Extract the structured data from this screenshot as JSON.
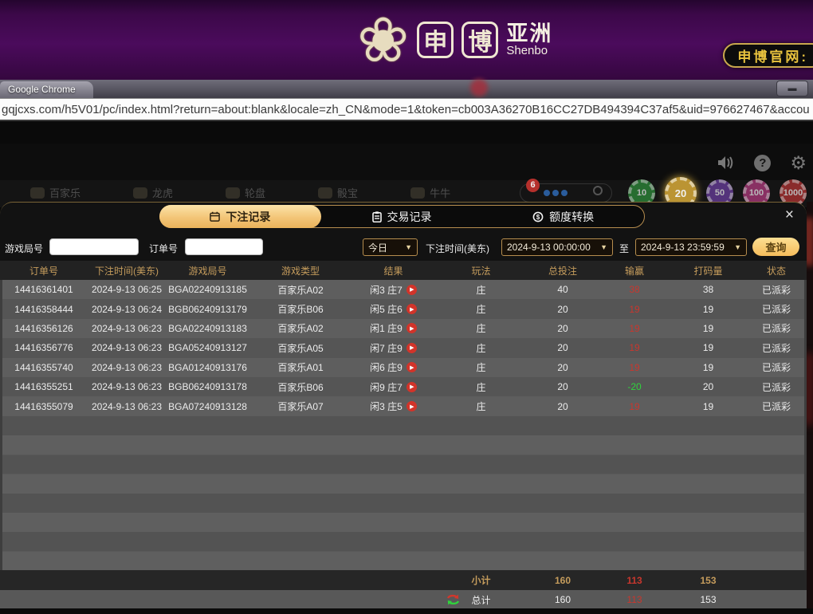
{
  "brand": {
    "logo_char_1": "申",
    "logo_char_2": "博",
    "logo_region": "亚洲",
    "logo_en": "Shenbo",
    "flower_glyph": "❀",
    "official_site_label": "申博官网:"
  },
  "browser": {
    "window_title": "Google Chrome",
    "url": "gqjcxs.com/h5V01/pc/index.html?return=about:blank&locale=zh_CN&mode=1&token=cb003A36270B16CC27DB494394C37af5&uid=976627467&accou",
    "minimize_glyph": "▬"
  },
  "game_header": {
    "help_glyph": "?",
    "gear_glyph": "⚙",
    "nav_items": [
      "百家乐",
      "龙虎",
      "轮盘",
      "骰宝",
      "牛牛"
    ],
    "notice_badge": "6",
    "chips": [
      "10",
      "20",
      "50",
      "100",
      "1000"
    ],
    "highlight_chip": "20",
    "chip_colors": [
      "#2e8b3a",
      "#bb9433",
      "#6a3e9e",
      "#b03a7e",
      "#b23333"
    ]
  },
  "modal": {
    "tabs": [
      {
        "name": "tab-bet-records",
        "label": "下注记录",
        "icon": "calendar-icon",
        "active": true
      },
      {
        "name": "tab-transaction-records",
        "label": "交易记录",
        "icon": "clipboard-icon",
        "active": false
      },
      {
        "name": "tab-quota-transfer",
        "label": "额度转换",
        "icon": "coins-icon",
        "active": false
      }
    ],
    "close_glyph": "×",
    "filters": {
      "game_round_label": "游戏局号",
      "game_round_value": "",
      "order_no_label": "订单号",
      "order_no_value": "",
      "range_select_value": "今日",
      "bet_time_label": "下注时间(美东)",
      "date_from_value": "2024-9-13 00:00:00",
      "to_label": "至",
      "date_to_value": "2024-9-13 23:59:59",
      "search_label": "查询",
      "caret_glyph": "▼"
    },
    "table": {
      "headers": [
        "订单号",
        "下注时间(美东)",
        "游戏局号",
        "游戏类型",
        "结果",
        "玩法",
        "总投注",
        "输赢",
        "打码量",
        "状态"
      ],
      "play_glyph": "▶",
      "rows": [
        {
          "order_no": "14416361401",
          "bet_time": "2024-9-13 06:25",
          "round_no": "BGA02240913185",
          "game_type": "百家乐A02",
          "result": "闲3 庄7",
          "play": "庄",
          "total_bet": "40",
          "win_loss": "38",
          "win_class": "red",
          "turnover": "38",
          "status": "已派彩"
        },
        {
          "order_no": "14416358444",
          "bet_time": "2024-9-13 06:24",
          "round_no": "BGB06240913179",
          "game_type": "百家乐B06",
          "result": "闲5 庄6",
          "play": "庄",
          "total_bet": "20",
          "win_loss": "19",
          "win_class": "red",
          "turnover": "19",
          "status": "已派彩"
        },
        {
          "order_no": "14416356126",
          "bet_time": "2024-9-13 06:23",
          "round_no": "BGA02240913183",
          "game_type": "百家乐A02",
          "result": "闲1 庄9",
          "play": "庄",
          "total_bet": "20",
          "win_loss": "19",
          "win_class": "red",
          "turnover": "19",
          "status": "已派彩"
        },
        {
          "order_no": "14416356776",
          "bet_time": "2024-9-13 06:23",
          "round_no": "BGA05240913127",
          "game_type": "百家乐A05",
          "result": "闲7 庄9",
          "play": "庄",
          "total_bet": "20",
          "win_loss": "19",
          "win_class": "red",
          "turnover": "19",
          "status": "已派彩"
        },
        {
          "order_no": "14416355740",
          "bet_time": "2024-9-13 06:23",
          "round_no": "BGA01240913176",
          "game_type": "百家乐A01",
          "result": "闲6 庄9",
          "play": "庄",
          "total_bet": "20",
          "win_loss": "19",
          "win_class": "red",
          "turnover": "19",
          "status": "已派彩"
        },
        {
          "order_no": "14416355251",
          "bet_time": "2024-9-13 06:23",
          "round_no": "BGB06240913178",
          "game_type": "百家乐B06",
          "result": "闲9 庄7",
          "play": "庄",
          "total_bet": "20",
          "win_loss": "-20",
          "win_class": "green",
          "turnover": "20",
          "status": "已派彩"
        },
        {
          "order_no": "14416355079",
          "bet_time": "2024-9-13 06:23",
          "round_no": "BGA07240913128",
          "game_type": "百家乐A07",
          "result": "闲3 庄5",
          "play": "庄",
          "total_bet": "20",
          "win_loss": "19",
          "win_class": "red",
          "turnover": "19",
          "status": "已派彩"
        }
      ],
      "subtotal": {
        "label": "小计",
        "total_bet": "160",
        "win_loss": "113",
        "turnover": "153"
      },
      "total": {
        "label": "总计",
        "total_bet": "160",
        "win_loss": "113",
        "turnover": "153"
      }
    },
    "colors": {
      "accent_gold": "#c59c5c",
      "win_red": "#c8372e",
      "loss_green": "#2fd33c"
    }
  }
}
